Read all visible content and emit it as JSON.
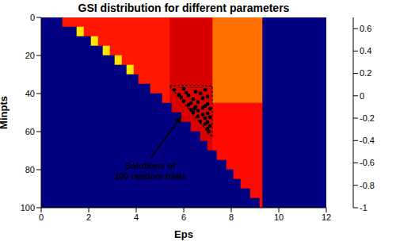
{
  "chart_data": {
    "type": "heatmap",
    "title": "GSI distribution for different parameters",
    "x_label": "Eps",
    "y_label": "Minpts",
    "xlim": [
      0,
      12
    ],
    "xticks": [
      0,
      2,
      4,
      6,
      8,
      10,
      12
    ],
    "ylim": [
      0,
      100
    ],
    "yticks": [
      0,
      20,
      40,
      60,
      80,
      100
    ],
    "colorbar": {
      "range": [
        -1,
        0.7
      ],
      "ticks": [
        -1,
        -0.8,
        -0.6,
        -0.4,
        -0.2,
        0,
        0.2,
        0.4,
        0.6
      ]
    },
    "cells": [
      {
        "x": [
          9.3,
          12
        ],
        "y": [
          0,
          100
        ],
        "value": -1
      },
      {
        "x": [
          7.2,
          9.3
        ],
        "y": [
          0,
          45
        ],
        "value": 0.3
      },
      {
        "x": [
          5.4,
          7.2
        ],
        "y": [
          0,
          45
        ],
        "value": 0.55
      },
      {
        "x": [
          0,
          0.9
        ],
        "y": [
          0,
          5
        ],
        "value": -1
      },
      {
        "x": [
          0.9,
          5.4
        ],
        "y": [
          0,
          5
        ],
        "value": 0.45
      },
      {
        "x": [
          0,
          1.5
        ],
        "y": [
          5,
          10
        ],
        "value": -1
      },
      {
        "x": [
          1.5,
          1.8
        ],
        "y": [
          5,
          10
        ],
        "value": 0.1
      },
      {
        "x": [
          1.8,
          5.4
        ],
        "y": [
          5,
          10
        ],
        "value": 0.45
      },
      {
        "x": [
          0,
          2.1
        ],
        "y": [
          10,
          15
        ],
        "value": -1
      },
      {
        "x": [
          2.1,
          2.4
        ],
        "y": [
          10,
          15
        ],
        "value": 0.1
      },
      {
        "x": [
          2.4,
          5.4
        ],
        "y": [
          10,
          15
        ],
        "value": 0.45
      },
      {
        "x": [
          0,
          2.6
        ],
        "y": [
          15,
          20
        ],
        "value": -1
      },
      {
        "x": [
          2.6,
          2.9
        ],
        "y": [
          15,
          20
        ],
        "value": 0.1
      },
      {
        "x": [
          2.9,
          5.4
        ],
        "y": [
          15,
          20
        ],
        "value": 0.45
      },
      {
        "x": [
          0,
          3.1
        ],
        "y": [
          20,
          25
        ],
        "value": -1
      },
      {
        "x": [
          3.1,
          3.4
        ],
        "y": [
          20,
          25
        ],
        "value": 0.1
      },
      {
        "x": [
          3.4,
          5.4
        ],
        "y": [
          20,
          25
        ],
        "value": 0.45
      },
      {
        "x": [
          0,
          3.6
        ],
        "y": [
          25,
          30
        ],
        "value": -1
      },
      {
        "x": [
          3.6,
          3.9
        ],
        "y": [
          25,
          30
        ],
        "value": 0.1
      },
      {
        "x": [
          3.9,
          5.4
        ],
        "y": [
          25,
          30
        ],
        "value": 0.45
      },
      {
        "x": [
          0,
          4.1
        ],
        "y": [
          30,
          35
        ],
        "value": -1
      },
      {
        "x": [
          4.1,
          5.4
        ],
        "y": [
          30,
          35
        ],
        "value": 0.45
      },
      {
        "x": [
          0,
          4.6
        ],
        "y": [
          35,
          40
        ],
        "value": -1
      },
      {
        "x": [
          4.6,
          5.4
        ],
        "y": [
          35,
          40
        ],
        "value": 0.45
      },
      {
        "x": [
          0,
          5.1
        ],
        "y": [
          40,
          45
        ],
        "value": -1
      },
      {
        "x": [
          5.1,
          5.4
        ],
        "y": [
          40,
          45
        ],
        "value": 0.45
      },
      {
        "x": [
          0,
          5.5
        ],
        "y": [
          45,
          50
        ],
        "value": -1
      },
      {
        "x": [
          5.5,
          7.2
        ],
        "y": [
          45,
          50
        ],
        "value": 0.55
      },
      {
        "x": [
          7.2,
          9.3
        ],
        "y": [
          45,
          50
        ],
        "value": 0.47
      },
      {
        "x": [
          0,
          5.9
        ],
        "y": [
          50,
          55
        ],
        "value": -1
      },
      {
        "x": [
          5.9,
          7.2
        ],
        "y": [
          50,
          55
        ],
        "value": 0.55
      },
      {
        "x": [
          7.2,
          9.3
        ],
        "y": [
          50,
          55
        ],
        "value": 0.47
      },
      {
        "x": [
          0,
          6.3
        ],
        "y": [
          55,
          60
        ],
        "value": -1
      },
      {
        "x": [
          6.3,
          7.2
        ],
        "y": [
          55,
          60
        ],
        "value": 0.55
      },
      {
        "x": [
          7.2,
          9.3
        ],
        "y": [
          55,
          60
        ],
        "value": 0.47
      },
      {
        "x": [
          0,
          6.7
        ],
        "y": [
          60,
          65
        ],
        "value": -1
      },
      {
        "x": [
          6.7,
          7.2
        ],
        "y": [
          60,
          65
        ],
        "value": 0.55
      },
      {
        "x": [
          7.2,
          9.3
        ],
        "y": [
          60,
          65
        ],
        "value": 0.47
      },
      {
        "x": [
          0,
          7.0
        ],
        "y": [
          65,
          70
        ],
        "value": -1
      },
      {
        "x": [
          7.0,
          7.2
        ],
        "y": [
          65,
          70
        ],
        "value": 0.55
      },
      {
        "x": [
          7.2,
          9.3
        ],
        "y": [
          65,
          70
        ],
        "value": 0.47
      },
      {
        "x": [
          0,
          7.4
        ],
        "y": [
          70,
          75
        ],
        "value": -1
      },
      {
        "x": [
          7.4,
          9.3
        ],
        "y": [
          70,
          75
        ],
        "value": 0.47
      },
      {
        "x": [
          0,
          7.8
        ],
        "y": [
          75,
          80
        ],
        "value": -1
      },
      {
        "x": [
          7.8,
          9.3
        ],
        "y": [
          75,
          80
        ],
        "value": 0.47
      },
      {
        "x": [
          0,
          8.1
        ],
        "y": [
          80,
          85
        ],
        "value": -1
      },
      {
        "x": [
          8.1,
          9.3
        ],
        "y": [
          80,
          85
        ],
        "value": 0.47
      },
      {
        "x": [
          0,
          8.4
        ],
        "y": [
          85,
          90
        ],
        "value": -1
      },
      {
        "x": [
          8.4,
          9.3
        ],
        "y": [
          85,
          90
        ],
        "value": 0.47
      },
      {
        "x": [
          0,
          8.8
        ],
        "y": [
          90,
          95
        ],
        "value": -1
      },
      {
        "x": [
          8.8,
          9.3
        ],
        "y": [
          90,
          95
        ],
        "value": 0.47
      },
      {
        "x": [
          0,
          9.2
        ],
        "y": [
          95,
          100
        ],
        "value": -1
      },
      {
        "x": [
          9.2,
          9.3
        ],
        "y": [
          95,
          100
        ],
        "value": 0.47
      }
    ],
    "solutions": {
      "x": [
        5.6,
        6.0,
        6.5,
        6.9,
        5.8,
        6.2,
        6.7,
        7.0,
        5.9,
        6.4,
        6.8,
        6.0,
        6.3,
        6.6,
        7.0,
        6.2,
        6.5,
        6.9,
        6.3,
        6.6,
        7.1,
        6.4,
        6.8,
        7.0,
        6.6,
        6.9,
        6.7,
        7.0,
        6.9,
        7.1,
        7.0,
        7.05,
        6.1,
        6.8,
        6.45,
        7.1
      ],
      "y": [
        38,
        37.5,
        39,
        38,
        40.5,
        41,
        40,
        41.5,
        42,
        43,
        42.5,
        44,
        45,
        44.5,
        45.5,
        46,
        47,
        46.5,
        48.5,
        49,
        48,
        50,
        51,
        50.5,
        52,
        53,
        54.5,
        55,
        56,
        57,
        58.5,
        60,
        39.5,
        47.5,
        48,
        52.5
      ]
    },
    "solution_region": {
      "x": [
        5.4,
        7.2,
        7.2,
        5.4
      ],
      "y": [
        36,
        36,
        63,
        36
      ]
    },
    "annotation": {
      "text": [
        "Solutions of",
        "100 random trials"
      ],
      "xy": [
        5.9,
        52
      ],
      "xytext": [
        4.6,
        74
      ]
    }
  }
}
